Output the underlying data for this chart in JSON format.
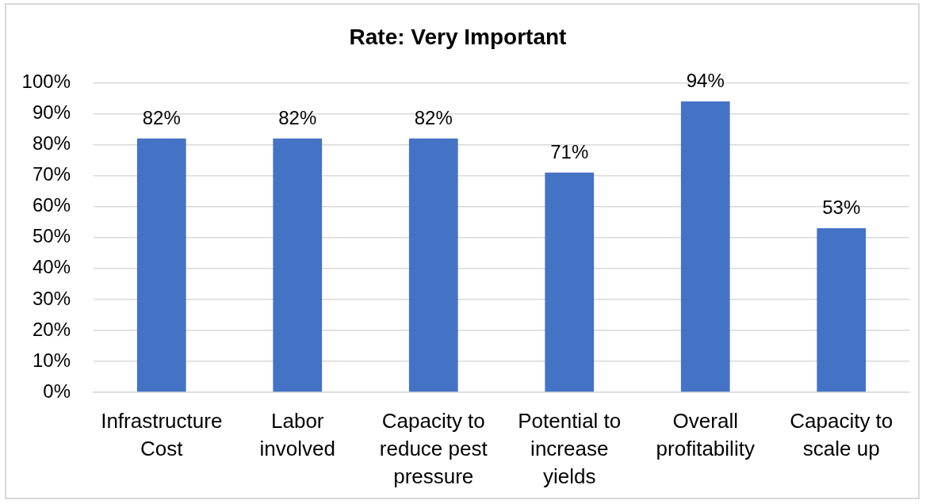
{
  "chart_data": {
    "type": "bar",
    "title": "Rate: Very Important",
    "categories": [
      "Infrastructure Cost",
      "Labor involved",
      "Capacity to reduce pest pressure",
      "Potential to increase yields",
      "Overall profitability",
      "Capacity to scale up"
    ],
    "values": [
      82,
      82,
      82,
      71,
      94,
      53
    ],
    "color": "#4472c4",
    "value_labels": [
      "82%",
      "82%",
      "82%",
      "71%",
      "94%",
      "53%"
    ],
    "ylim": [
      0,
      100
    ],
    "yticks": [
      {
        "value": 0,
        "label": "0%"
      },
      {
        "value": 10,
        "label": "10%"
      },
      {
        "value": 20,
        "label": "20%"
      },
      {
        "value": 30,
        "label": "30%"
      },
      {
        "value": 40,
        "label": "40%"
      },
      {
        "value": 50,
        "label": "50%"
      },
      {
        "value": 60,
        "label": "60%"
      },
      {
        "value": 70,
        "label": "70%"
      },
      {
        "value": 80,
        "label": "80%"
      },
      {
        "value": 90,
        "label": "90%"
      },
      {
        "value": 100,
        "label": "100%"
      }
    ],
    "grid": "y"
  }
}
